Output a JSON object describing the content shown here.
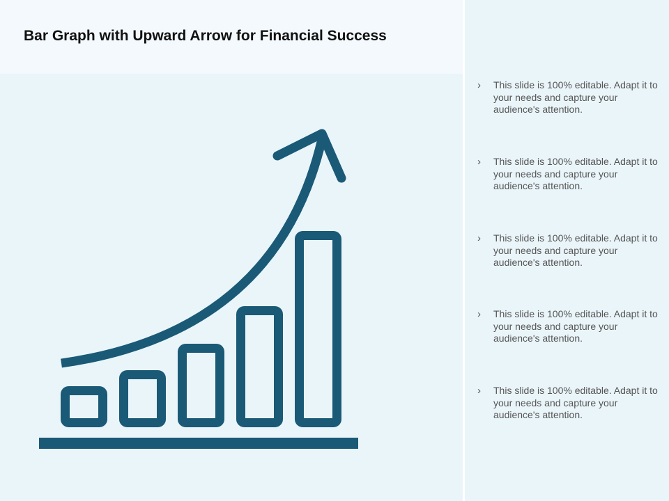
{
  "slide": {
    "title": "Bar Graph with Upward Arrow for Financial Success"
  },
  "figure": {
    "icon": "bar-graph-upward-arrow",
    "color": "#1a5a76"
  },
  "bullets": [
    {
      "marker": "›",
      "text": "This slide is 100% editable. Adapt it to your needs and capture your audience's attention."
    },
    {
      "marker": "›",
      "text": "This slide is 100% editable. Adapt it to your needs and capture your audience's attention."
    },
    {
      "marker": "›",
      "text": "This slide is 100% editable. Adapt it to your needs and capture your audience's attention."
    },
    {
      "marker": "›",
      "text": "This slide is 100% editable. Adapt it to your needs and capture your audience's attention."
    },
    {
      "marker": "›",
      "text": "This slide is 100% editable. Adapt it to your needs and capture your audience's attention."
    }
  ],
  "colors": {
    "panel_background": "#eaf5fa",
    "title_band": "#f3f9fc",
    "title_text": "#111111",
    "body_text": "#555555",
    "icon": "#1a5a76"
  }
}
